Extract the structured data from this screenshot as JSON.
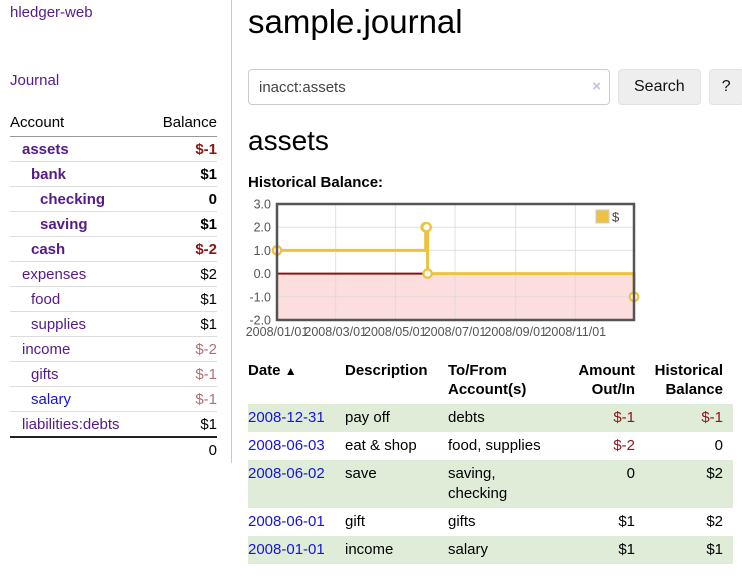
{
  "colors": {
    "link_purple": "#551a8b",
    "link_blue": "#1414dd",
    "negative_red": "#8d1515",
    "faded_red": "#b37070",
    "row_green": "#dfecd8",
    "chart_gold": "#edc240",
    "chart_pink": "#fddede",
    "chart_zero_red": "#8b1111",
    "chart_frame": "#545454",
    "chart_grid": "#d8d8d8",
    "chart_tick_text": "#545454"
  },
  "sidebar": {
    "app_title": "hledger-web",
    "nav_journal": "Journal",
    "accounts_table": {
      "headers": [
        "Account",
        "Balance"
      ],
      "rows": [
        {
          "account": "assets",
          "balance": "$-1",
          "level": 1,
          "bold": true,
          "balance_color": "negative"
        },
        {
          "account": "bank",
          "balance": "$1",
          "level": 2,
          "bold": true,
          "balance_color": "normal"
        },
        {
          "account": "checking",
          "balance": "0",
          "level": 3,
          "bold": true,
          "balance_color": "normal"
        },
        {
          "account": "saving",
          "balance": "$1",
          "level": 3,
          "bold": true,
          "balance_color": "normal"
        },
        {
          "account": "cash",
          "balance": "$-2",
          "level": 2,
          "bold": true,
          "balance_color": "negative"
        },
        {
          "account": "expenses",
          "balance": "$2",
          "level": 1,
          "bold": false,
          "balance_color": "normal"
        },
        {
          "account": "food",
          "balance": "$1",
          "level": 2,
          "bold": false,
          "balance_color": "normal"
        },
        {
          "account": "supplies",
          "balance": "$1",
          "level": 2,
          "bold": false,
          "balance_color": "normal"
        },
        {
          "account": "income",
          "balance": "$-2",
          "level": 1,
          "bold": false,
          "balance_color": "faded"
        },
        {
          "account": "gifts",
          "balance": "$-1",
          "level": 2,
          "bold": false,
          "balance_color": "faded"
        },
        {
          "account": "salary",
          "balance": "$-1",
          "level": 2,
          "bold": false,
          "balance_color": "faded",
          "link_color": "blue"
        },
        {
          "account": "liabilities:debts",
          "balance": "$1",
          "level": 1,
          "bold": false,
          "balance_color": "normal"
        }
      ],
      "total": "0"
    }
  },
  "main": {
    "title": "sample.journal",
    "search": {
      "value": "inacct:assets",
      "clear_icon": "×",
      "button_label": "Search",
      "help_label": "?"
    },
    "account_heading": "assets",
    "chart_heading": "Historical Balance:"
  },
  "chart_data": {
    "type": "line",
    "step": true,
    "title": "Historical Balance",
    "legend": "$",
    "legend_position": "top-right",
    "grid": true,
    "x_range": [
      "2008-01-01",
      "2008-12-31"
    ],
    "ylim": [
      -2.0,
      3.0
    ],
    "y_ticks": [
      3.0,
      2.0,
      1.0,
      0.0,
      -1.0,
      -2.0
    ],
    "x_ticks": [
      "2008/01/01",
      "2008/03/01",
      "2008/05/01",
      "2008/07/01",
      "2008/09/01",
      "2008/11/01"
    ],
    "series": [
      {
        "name": "$",
        "points": [
          [
            "2008-01-01",
            1
          ],
          [
            "2008-06-01",
            2
          ],
          [
            "2008-06-02",
            2
          ],
          [
            "2008-06-03",
            0
          ],
          [
            "2008-12-31",
            -1
          ]
        ]
      }
    ],
    "negative_region_shaded": true
  },
  "register": {
    "sort_icon": "▲",
    "columns": [
      {
        "label": "Date"
      },
      {
        "label": "Description"
      },
      {
        "label": "To/From Account(s)"
      },
      {
        "label": "Amount Out/In"
      },
      {
        "label": "Historical Balance"
      }
    ],
    "rows": [
      {
        "date": "2008-12-31",
        "description": "pay off",
        "accounts": "debts",
        "amount": "$-1",
        "amount_negative": true,
        "balance": "$-1",
        "balance_negative": true
      },
      {
        "date": "2008-06-03",
        "description": "eat & shop",
        "accounts": "food, supplies",
        "amount": "$-2",
        "amount_negative": true,
        "balance": "0",
        "balance_negative": false
      },
      {
        "date": "2008-06-02",
        "description": "save",
        "accounts": "saving, checking",
        "amount": "0",
        "amount_negative": false,
        "balance": "$2",
        "balance_negative": false
      },
      {
        "date": "2008-06-01",
        "description": "gift",
        "accounts": "gifts",
        "amount": "$1",
        "amount_negative": false,
        "balance": "$2",
        "balance_negative": false
      },
      {
        "date": "2008-01-01",
        "description": "income",
        "accounts": "salary",
        "amount": "$1",
        "amount_negative": false,
        "balance": "$1",
        "balance_negative": false
      }
    ]
  }
}
